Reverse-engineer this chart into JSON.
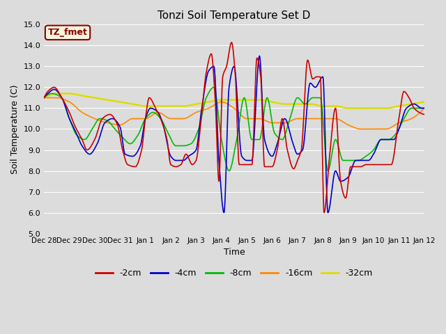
{
  "title": "Tonzi Soil Temperature Set D",
  "xlabel": "Time",
  "ylabel": "Soil Temperature (C)",
  "ylim": [
    5.0,
    15.0
  ],
  "yticks": [
    5.0,
    6.0,
    7.0,
    8.0,
    9.0,
    10.0,
    11.0,
    12.0,
    13.0,
    14.0,
    15.0
  ],
  "background_color": "#dcdcdc",
  "plot_bg_color": "#dcdcdc",
  "label_box_color": "#f5f5dc",
  "label_box_border": "#8b0000",
  "label_text_color": "#8b0000",
  "label_text": "TZ_fmet",
  "colors": {
    "-2cm": "#cc0000",
    "-4cm": "#0000cc",
    "-8cm": "#00bb00",
    "-16cm": "#ff8800",
    "-32cm": "#dddd00"
  },
  "xtick_labels": [
    "Dec 28",
    "Dec 29",
    "Dec 30",
    "Dec 31",
    "Jan 1",
    "Jan 2",
    "Jan 3",
    "Jan 4",
    "Jan 5",
    "Jan 6",
    "Jan 7",
    "Jan 8",
    "Jan 9",
    "Jan 10",
    "Jan 11",
    "Jan 12"
  ],
  "anchor_2cm_x": [
    0.0,
    0.15,
    0.4,
    0.7,
    1.0,
    1.2,
    1.5,
    1.7,
    2.0,
    2.3,
    2.6,
    2.9,
    3.1,
    3.3,
    3.6,
    3.85,
    4.0,
    4.15,
    4.4,
    4.6,
    4.85,
    5.0,
    5.2,
    5.4,
    5.6,
    5.85,
    6.0,
    6.2,
    6.4,
    6.6,
    6.75,
    6.9,
    7.05,
    7.2,
    7.4,
    7.55,
    7.7,
    7.9,
    8.05,
    8.2,
    8.4,
    8.55,
    8.7,
    9.0,
    9.2,
    9.4,
    9.6,
    9.85,
    10.0,
    10.15,
    10.4,
    10.6,
    10.75,
    10.9,
    11.05,
    11.25,
    11.5,
    11.7,
    11.9,
    12.1,
    12.3,
    12.5,
    12.7,
    13.0,
    13.3,
    13.5,
    13.7,
    14.0,
    14.2,
    14.4,
    14.6,
    14.8,
    15.0
  ],
  "anchor_2cm_y": [
    11.5,
    11.8,
    12.0,
    11.5,
    10.8,
    10.2,
    9.5,
    9.0,
    9.5,
    10.5,
    10.7,
    10.2,
    9.0,
    8.3,
    8.2,
    9.0,
    10.5,
    11.5,
    11.0,
    10.5,
    9.5,
    8.3,
    8.2,
    8.3,
    8.8,
    8.3,
    8.5,
    10.5,
    12.7,
    13.6,
    11.5,
    7.5,
    12.5,
    13.0,
    14.15,
    12.5,
    8.3,
    8.3,
    8.3,
    8.3,
    13.4,
    12.5,
    8.2,
    8.2,
    9.0,
    10.5,
    9.0,
    8.1,
    8.5,
    9.0,
    13.3,
    12.4,
    12.5,
    12.5,
    6.0,
    8.5,
    11.0,
    7.5,
    6.7,
    8.2,
    8.2,
    8.2,
    8.3,
    8.3,
    8.3,
    8.3,
    8.3,
    10.5,
    11.8,
    11.5,
    11.0,
    10.8,
    10.7
  ],
  "anchor_4cm_x": [
    0.0,
    0.15,
    0.4,
    0.7,
    1.0,
    1.2,
    1.5,
    1.8,
    2.1,
    2.4,
    2.7,
    3.0,
    3.2,
    3.5,
    3.8,
    4.0,
    4.2,
    4.5,
    4.7,
    5.0,
    5.2,
    5.5,
    5.7,
    6.0,
    6.2,
    6.5,
    6.7,
    6.9,
    7.1,
    7.3,
    7.5,
    7.8,
    8.0,
    8.2,
    8.5,
    8.7,
    9.0,
    9.2,
    9.5,
    9.8,
    10.0,
    10.2,
    10.5,
    10.7,
    11.0,
    11.2,
    11.5,
    11.7,
    12.0,
    12.3,
    12.5,
    12.8,
    13.0,
    13.3,
    13.5,
    13.8,
    14.0,
    14.3,
    14.6,
    14.9,
    15.0
  ],
  "anchor_4cm_y": [
    11.5,
    11.7,
    11.9,
    11.5,
    10.5,
    10.0,
    9.2,
    8.8,
    9.3,
    10.3,
    10.5,
    10.1,
    8.8,
    8.7,
    9.2,
    10.5,
    11.0,
    10.8,
    10.2,
    8.7,
    8.5,
    8.5,
    8.7,
    9.0,
    10.8,
    12.8,
    13.0,
    8.5,
    6.0,
    12.0,
    13.0,
    8.7,
    8.5,
    8.5,
    13.5,
    9.5,
    8.7,
    9.3,
    10.5,
    9.4,
    8.8,
    9.0,
    12.2,
    12.0,
    12.5,
    6.0,
    8.0,
    7.5,
    7.7,
    8.5,
    8.5,
    8.5,
    8.8,
    9.5,
    9.5,
    9.5,
    10.0,
    11.0,
    11.2,
    11.0,
    11.0
  ],
  "anchor_8cm_x": [
    0.0,
    0.3,
    0.7,
    1.0,
    1.3,
    1.6,
    1.9,
    2.2,
    2.5,
    2.8,
    3.1,
    3.4,
    3.7,
    4.0,
    4.3,
    4.6,
    4.9,
    5.2,
    5.5,
    5.8,
    6.1,
    6.4,
    6.7,
    7.0,
    7.3,
    7.6,
    7.9,
    8.2,
    8.5,
    8.8,
    9.1,
    9.4,
    9.7,
    10.0,
    10.3,
    10.6,
    10.9,
    11.2,
    11.5,
    11.8,
    12.1,
    12.4,
    12.7,
    13.0,
    13.3,
    13.6,
    13.9,
    14.2,
    14.5,
    14.8,
    15.0
  ],
  "anchor_8cm_y": [
    11.5,
    11.7,
    11.5,
    10.5,
    9.7,
    9.5,
    10.0,
    10.5,
    10.4,
    10.0,
    9.6,
    9.3,
    9.7,
    10.5,
    10.8,
    10.5,
    9.8,
    9.2,
    9.2,
    9.3,
    10.0,
    11.5,
    12.0,
    9.5,
    8.0,
    9.5,
    11.5,
    9.5,
    9.5,
    11.5,
    9.8,
    9.5,
    10.5,
    11.5,
    11.2,
    11.5,
    11.5,
    8.0,
    9.5,
    8.5,
    8.5,
    8.5,
    8.7,
    9.0,
    9.5,
    9.5,
    9.8,
    10.5,
    11.0,
    11.0,
    11.0
  ],
  "anchor_16cm_x": [
    0.0,
    0.5,
    1.0,
    1.5,
    2.0,
    2.5,
    3.0,
    3.5,
    4.0,
    4.5,
    5.0,
    5.5,
    6.0,
    6.5,
    7.0,
    7.5,
    8.0,
    8.5,
    9.0,
    9.5,
    10.0,
    10.5,
    11.0,
    11.5,
    12.0,
    12.5,
    13.0,
    13.5,
    14.0,
    14.5,
    15.0
  ],
  "anchor_16cm_y": [
    11.5,
    11.5,
    11.3,
    10.8,
    10.5,
    10.3,
    10.2,
    10.5,
    10.5,
    10.8,
    10.5,
    10.5,
    10.8,
    11.0,
    11.3,
    11.0,
    10.5,
    10.5,
    10.3,
    10.3,
    10.5,
    10.5,
    10.5,
    10.5,
    10.2,
    10.0,
    10.0,
    10.0,
    10.3,
    10.5,
    11.0
  ],
  "anchor_32cm_x": [
    0.0,
    0.5,
    1.0,
    1.5,
    2.0,
    2.5,
    3.0,
    3.5,
    4.0,
    4.5,
    5.0,
    5.5,
    6.0,
    6.5,
    7.0,
    7.5,
    8.0,
    8.5,
    9.0,
    9.5,
    10.0,
    10.5,
    11.0,
    11.5,
    12.0,
    12.5,
    13.0,
    13.5,
    14.0,
    14.5,
    15.0
  ],
  "anchor_32cm_y": [
    11.5,
    11.7,
    11.7,
    11.6,
    11.5,
    11.4,
    11.3,
    11.2,
    11.1,
    11.1,
    11.1,
    11.1,
    11.2,
    11.3,
    11.4,
    11.4,
    11.4,
    11.4,
    11.3,
    11.2,
    11.2,
    11.2,
    11.1,
    11.1,
    11.0,
    11.0,
    11.0,
    11.0,
    11.1,
    11.2,
    11.3
  ]
}
